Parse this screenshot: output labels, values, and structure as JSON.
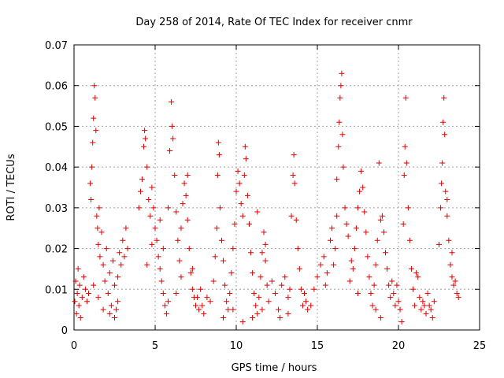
{
  "chart_data": {
    "type": "scatter",
    "title": "Day 258 of 2014, Rate Of TEC Index for receiver cnmr",
    "xlabel": "GPS time / hours",
    "ylabel": "ROTI / TECUs",
    "xlim": [
      0,
      25
    ],
    "ylim": [
      0,
      0.07
    ],
    "xticks": [
      0,
      5,
      10,
      15,
      20,
      25
    ],
    "xtick_labels": [
      "0",
      "5",
      "10",
      "15",
      "20",
      "25"
    ],
    "yticks": [
      0,
      0.01,
      0.02,
      0.03,
      0.04,
      0.05,
      0.06,
      0.07
    ],
    "ytick_labels": [
      "0",
      "0.01",
      "0.02",
      "0.03",
      "0.04",
      "0.05",
      "0.06",
      "0.07"
    ],
    "grid": true,
    "marker": "+",
    "color": "#e00000",
    "series": [
      {
        "name": "ROTI",
        "points": [
          [
            0.05,
            0.007
          ],
          [
            0.1,
            0.012
          ],
          [
            0.15,
            0.004
          ],
          [
            0.2,
            0.009
          ],
          [
            0.25,
            0.015
          ],
          [
            0.3,
            0.006
          ],
          [
            0.35,
            0.011
          ],
          [
            0.4,
            0.003
          ],
          [
            0.5,
            0.008
          ],
          [
            0.6,
            0.013
          ],
          [
            0.7,
            0.01
          ],
          [
            0.8,
            0.007
          ],
          [
            0.9,
            0.009
          ],
          [
            1.0,
            0.036
          ],
          [
            1.05,
            0.032
          ],
          [
            1.1,
            0.04
          ],
          [
            1.15,
            0.046
          ],
          [
            1.2,
            0.052
          ],
          [
            1.25,
            0.06
          ],
          [
            1.3,
            0.057
          ],
          [
            1.35,
            0.049
          ],
          [
            1.4,
            0.028
          ],
          [
            1.45,
            0.025
          ],
          [
            1.5,
            0.021
          ],
          [
            1.55,
            0.03
          ],
          [
            1.6,
            0.018
          ],
          [
            1.7,
            0.024
          ],
          [
            1.8,
            0.016
          ],
          [
            1.9,
            0.012
          ],
          [
            2.0,
            0.02
          ],
          [
            2.1,
            0.009
          ],
          [
            2.2,
            0.014
          ],
          [
            2.3,
            0.006
          ],
          [
            2.4,
            0.017
          ],
          [
            2.5,
            0.011
          ],
          [
            2.6,
            0.005
          ],
          [
            2.7,
            0.013
          ],
          [
            2.8,
            0.019
          ],
          [
            2.9,
            0.016
          ],
          [
            3.0,
            0.022
          ],
          [
            3.1,
            0.018
          ],
          [
            3.2,
            0.025
          ],
          [
            3.3,
            0.02
          ],
          [
            1.2,
            0.011
          ],
          [
            1.5,
            0.008
          ],
          [
            1.8,
            0.005
          ],
          [
            2.2,
            0.004
          ],
          [
            2.5,
            0.003
          ],
          [
            2.7,
            0.007
          ],
          [
            4.0,
            0.03
          ],
          [
            4.1,
            0.034
          ],
          [
            4.2,
            0.037
          ],
          [
            4.3,
            0.045
          ],
          [
            4.35,
            0.049
          ],
          [
            4.4,
            0.047
          ],
          [
            4.5,
            0.04
          ],
          [
            4.6,
            0.032
          ],
          [
            4.7,
            0.028
          ],
          [
            4.8,
            0.035
          ],
          [
            4.9,
            0.03
          ],
          [
            5.0,
            0.025
          ],
          [
            5.1,
            0.022
          ],
          [
            5.2,
            0.018
          ],
          [
            5.3,
            0.015
          ],
          [
            5.4,
            0.012
          ],
          [
            5.5,
            0.009
          ],
          [
            5.6,
            0.006
          ],
          [
            5.7,
            0.004
          ],
          [
            5.8,
            0.007
          ],
          [
            5.5,
            0.02
          ],
          [
            5.8,
            0.03
          ],
          [
            5.9,
            0.044
          ],
          [
            6.0,
            0.056
          ],
          [
            6.05,
            0.05
          ],
          [
            6.1,
            0.047
          ],
          [
            6.2,
            0.038
          ],
          [
            6.3,
            0.029
          ],
          [
            6.4,
            0.022
          ],
          [
            6.5,
            0.017
          ],
          [
            6.6,
            0.025
          ],
          [
            6.7,
            0.031
          ],
          [
            6.8,
            0.036
          ],
          [
            6.9,
            0.033
          ],
          [
            7.0,
            0.027
          ],
          [
            7.1,
            0.02
          ],
          [
            7.2,
            0.014
          ],
          [
            7.3,
            0.01
          ],
          [
            7.4,
            0.008
          ],
          [
            6.3,
            0.009
          ],
          [
            6.6,
            0.013
          ],
          [
            4.5,
            0.016
          ],
          [
            4.8,
            0.021
          ],
          [
            5.3,
            0.027
          ],
          [
            7.0,
            0.038
          ],
          [
            7.3,
            0.015
          ],
          [
            7.5,
            0.006
          ],
          [
            7.6,
            0.008
          ],
          [
            7.7,
            0.005
          ],
          [
            7.8,
            0.01
          ],
          [
            7.9,
            0.006
          ],
          [
            8.0,
            0.004
          ],
          [
            8.2,
            0.008
          ],
          [
            8.4,
            0.007
          ],
          [
            8.6,
            0.012
          ],
          [
            8.7,
            0.018
          ],
          [
            8.8,
            0.025
          ],
          [
            8.85,
            0.038
          ],
          [
            8.9,
            0.046
          ],
          [
            8.95,
            0.043
          ],
          [
            9.0,
            0.03
          ],
          [
            9.1,
            0.022
          ],
          [
            9.2,
            0.017
          ],
          [
            9.3,
            0.011
          ],
          [
            9.4,
            0.007
          ],
          [
            9.5,
            0.005
          ],
          [
            9.6,
            0.009
          ],
          [
            9.7,
            0.014
          ],
          [
            9.8,
            0.02
          ],
          [
            9.9,
            0.026
          ],
          [
            10.0,
            0.034
          ],
          [
            10.1,
            0.039
          ],
          [
            10.2,
            0.036
          ],
          [
            10.3,
            0.031
          ],
          [
            10.4,
            0.028
          ],
          [
            10.5,
            0.038
          ],
          [
            10.55,
            0.045
          ],
          [
            10.6,
            0.042
          ],
          [
            10.7,
            0.033
          ],
          [
            10.8,
            0.026
          ],
          [
            10.9,
            0.019
          ],
          [
            11.0,
            0.014
          ],
          [
            11.1,
            0.009
          ],
          [
            11.2,
            0.006
          ],
          [
            11.3,
            0.004
          ],
          [
            11.4,
            0.008
          ],
          [
            11.5,
            0.013
          ],
          [
            11.6,
            0.019
          ],
          [
            11.7,
            0.024
          ],
          [
            11.8,
            0.017
          ],
          [
            11.9,
            0.011
          ],
          [
            9.2,
            0.003
          ],
          [
            9.8,
            0.005
          ],
          [
            10.4,
            0.002
          ],
          [
            11.0,
            0.003
          ],
          [
            11.6,
            0.005
          ],
          [
            11.3,
            0.029
          ],
          [
            11.8,
            0.021
          ],
          [
            12.0,
            0.007
          ],
          [
            12.2,
            0.012
          ],
          [
            12.4,
            0.009
          ],
          [
            12.6,
            0.005
          ],
          [
            12.8,
            0.011
          ],
          [
            13.0,
            0.013
          ],
          [
            13.2,
            0.008
          ],
          [
            13.3,
            0.01
          ],
          [
            13.4,
            0.028
          ],
          [
            13.5,
            0.038
          ],
          [
            13.55,
            0.043
          ],
          [
            13.6,
            0.036
          ],
          [
            13.7,
            0.027
          ],
          [
            13.8,
            0.02
          ],
          [
            13.9,
            0.015
          ],
          [
            14.0,
            0.01
          ],
          [
            14.1,
            0.006
          ],
          [
            14.2,
            0.009
          ],
          [
            14.3,
            0.007
          ],
          [
            14.4,
            0.005
          ],
          [
            13.2,
            0.004
          ],
          [
            12.7,
            0.003
          ],
          [
            14.6,
            0.006
          ],
          [
            14.8,
            0.01
          ],
          [
            15.0,
            0.013
          ],
          [
            15.2,
            0.016
          ],
          [
            15.4,
            0.018
          ],
          [
            15.6,
            0.014
          ],
          [
            15.8,
            0.022
          ],
          [
            15.9,
            0.025
          ],
          [
            16.0,
            0.016
          ],
          [
            16.1,
            0.02
          ],
          [
            16.2,
            0.028
          ],
          [
            16.3,
            0.045
          ],
          [
            16.35,
            0.051
          ],
          [
            16.4,
            0.057
          ],
          [
            16.45,
            0.06
          ],
          [
            16.5,
            0.063
          ],
          [
            16.55,
            0.048
          ],
          [
            16.6,
            0.04
          ],
          [
            16.7,
            0.03
          ],
          [
            16.8,
            0.026
          ],
          [
            16.9,
            0.023
          ],
          [
            16.2,
            0.037
          ],
          [
            15.5,
            0.011
          ],
          [
            17.0,
            0.012
          ],
          [
            17.1,
            0.017
          ],
          [
            17.2,
            0.015
          ],
          [
            17.3,
            0.02
          ],
          [
            17.4,
            0.025
          ],
          [
            17.5,
            0.03
          ],
          [
            17.6,
            0.034
          ],
          [
            17.7,
            0.039
          ],
          [
            17.8,
            0.035
          ],
          [
            17.9,
            0.029
          ],
          [
            18.0,
            0.024
          ],
          [
            18.1,
            0.018
          ],
          [
            18.2,
            0.013
          ],
          [
            18.3,
            0.009
          ],
          [
            18.4,
            0.006
          ],
          [
            18.5,
            0.011
          ],
          [
            18.6,
            0.016
          ],
          [
            18.7,
            0.022
          ],
          [
            18.8,
            0.041
          ],
          [
            18.9,
            0.027
          ],
          [
            19.0,
            0.028
          ],
          [
            19.1,
            0.024
          ],
          [
            19.2,
            0.019
          ],
          [
            19.3,
            0.015
          ],
          [
            19.4,
            0.011
          ],
          [
            19.5,
            0.008
          ],
          [
            19.6,
            0.012
          ],
          [
            18.6,
            0.005
          ],
          [
            18.9,
            0.003
          ],
          [
            17.5,
            0.009
          ],
          [
            19.7,
            0.009
          ],
          [
            19.8,
            0.006
          ],
          [
            19.9,
            0.011
          ],
          [
            20.0,
            0.007
          ],
          [
            20.1,
            0.005
          ],
          [
            20.2,
            0.002
          ],
          [
            20.3,
            0.026
          ],
          [
            20.35,
            0.038
          ],
          [
            20.4,
            0.045
          ],
          [
            20.45,
            0.057
          ],
          [
            20.5,
            0.041
          ],
          [
            20.6,
            0.03
          ],
          [
            20.7,
            0.022
          ],
          [
            20.8,
            0.015
          ],
          [
            20.9,
            0.01
          ],
          [
            21.0,
            0.006
          ],
          [
            21.1,
            0.014
          ],
          [
            21.2,
            0.013
          ],
          [
            21.3,
            0.008
          ],
          [
            21.4,
            0.005
          ],
          [
            21.5,
            0.007
          ],
          [
            21.6,
            0.006
          ],
          [
            21.7,
            0.004
          ],
          [
            21.8,
            0.009
          ],
          [
            21.9,
            0.006
          ],
          [
            22.0,
            0.005
          ],
          [
            22.1,
            0.003
          ],
          [
            22.2,
            0.007
          ],
          [
            22.5,
            0.021
          ],
          [
            22.6,
            0.03
          ],
          [
            22.65,
            0.036
          ],
          [
            22.7,
            0.041
          ],
          [
            22.75,
            0.051
          ],
          [
            22.8,
            0.057
          ],
          [
            22.85,
            0.048
          ],
          [
            22.9,
            0.034
          ],
          [
            23.0,
            0.028
          ],
          [
            23.1,
            0.022
          ],
          [
            23.2,
            0.016
          ],
          [
            23.3,
            0.013
          ],
          [
            23.4,
            0.011
          ],
          [
            23.5,
            0.012
          ],
          [
            23.6,
            0.009
          ],
          [
            23.7,
            0.008
          ],
          [
            23.0,
            0.032
          ],
          [
            23.3,
            0.019
          ]
        ]
      }
    ]
  }
}
